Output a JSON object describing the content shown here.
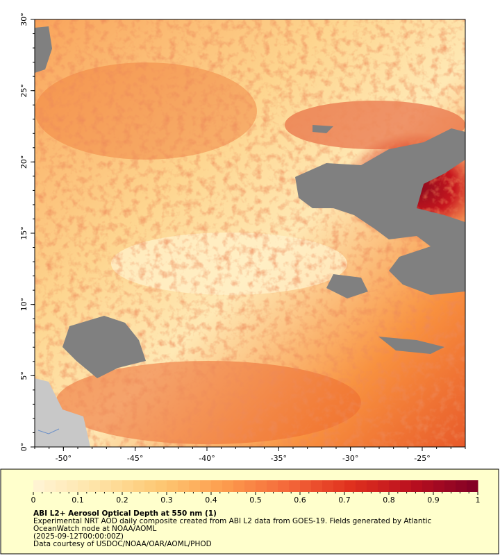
{
  "map": {
    "xlim": [
      -52,
      -22
    ],
    "ylim": [
      0,
      30
    ],
    "xticks": [
      {
        "value": -50,
        "label": "-50°"
      },
      {
        "value": -45,
        "label": "-45°"
      },
      {
        "value": -40,
        "label": "-40°"
      },
      {
        "value": -35,
        "label": "-35°"
      },
      {
        "value": -30,
        "label": "-30°"
      },
      {
        "value": -25,
        "label": "-25°"
      }
    ],
    "yticks": [
      {
        "value": 0,
        "label": "0°"
      },
      {
        "value": 5,
        "label": "5°"
      },
      {
        "value": 10,
        "label": "10°"
      },
      {
        "value": 15,
        "label": "15°"
      },
      {
        "value": 20,
        "label": "20°"
      },
      {
        "value": 25,
        "label": "25°"
      },
      {
        "value": 30,
        "label": "30°"
      }
    ]
  },
  "colorbar": {
    "range": [
      0,
      1
    ],
    "ticks": [
      0,
      0.1,
      0.2,
      0.3,
      0.4,
      0.5,
      0.6,
      0.7,
      0.8,
      0.9,
      1
    ],
    "colors": [
      "#fff5d6",
      "#fee3a6",
      "#fdc873",
      "#fd9d4e",
      "#f4683a",
      "#e0301e",
      "#b80f1f",
      "#7f0026"
    ]
  },
  "caption": {
    "title": "ABI L2+ Aerosol Optical Depth at 550 nm (1)",
    "lines": [
      "Experimental NRT AOD daily composite created from ABI L2 data from GOES-19. Fields generated by Atlantic",
      "OceanWatch node at NOAA/AOML",
      "(2025-09-12T00:00:00Z)",
      "Data courtesy of USDOC/NOAA/OAR/AOML/PHOD"
    ]
  }
}
